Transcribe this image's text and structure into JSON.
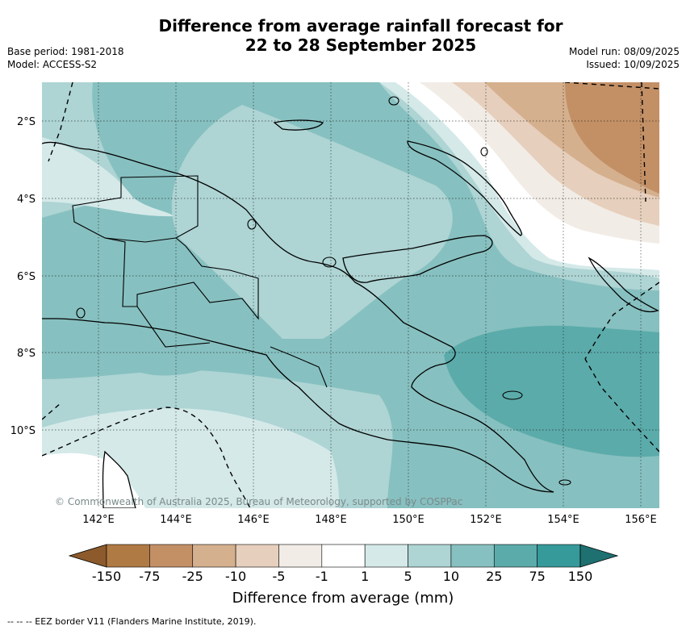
{
  "title": {
    "line1": "Difference from average rainfall forecast for",
    "line2": "22 to 28 September 2025"
  },
  "meta_left": {
    "base_period": "Base period: 1981-2018",
    "model": "Model: ACCESS-S2"
  },
  "meta_right": {
    "model_run": "Model run: 08/09/2025",
    "issued": "Issued: 10/09/2025"
  },
  "map": {
    "lat_labels": [
      "2°S",
      "4°S",
      "6°S",
      "8°S",
      "10°S"
    ],
    "lon_labels": [
      "142°E",
      "144°E",
      "146°E",
      "148°E",
      "150°E",
      "152°E",
      "154°E",
      "156°E"
    ],
    "credit": "© Commonwealth of Australia 2025, Bureau of Meteorology, supported by COSPPac",
    "land_outline_color": "#000000",
    "gridline_style": "dotted"
  },
  "colorbar": {
    "title": "Difference from average (mm)",
    "boundaries": [
      "-150",
      "-75",
      "-25",
      "-10",
      "-5",
      "-1",
      "1",
      "5",
      "10",
      "25",
      "75",
      "150"
    ],
    "colors": [
      "#8c5a2b",
      "#b07a44",
      "#c39066",
      "#d5b08e",
      "#e6cfbc",
      "#f2ece6",
      "#ffffff",
      "#d5e9e9",
      "#aed4d4",
      "#87c0c0",
      "#5cabab",
      "#36999a",
      "#1f7070"
    ]
  },
  "legend_note": "--  --  -- EEZ border V11 (Flanders Marine Institute, 2019)."
}
